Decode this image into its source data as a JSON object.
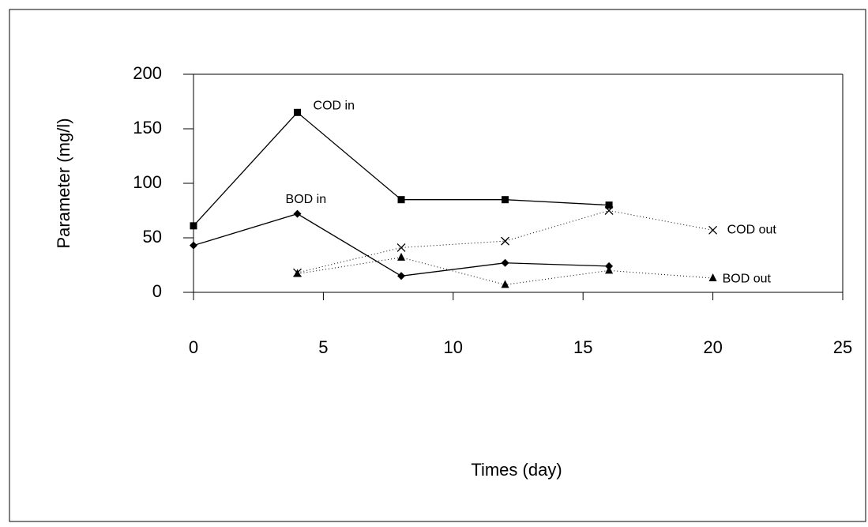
{
  "chart_data": {
    "type": "line",
    "x_label": "Times (day)",
    "y_label": "Parameter (mg/l)",
    "xlim": [
      0,
      25
    ],
    "xticks": [
      0,
      5,
      10,
      15,
      20,
      25
    ],
    "ylim": [
      0,
      200
    ],
    "yticks": [
      0,
      50,
      100,
      150,
      200
    ],
    "series": [
      {
        "name": "COD in",
        "color": "#000000",
        "line_style": "solid",
        "marker": "square",
        "x": [
          0,
          4,
          8,
          12,
          16
        ],
        "values": [
          61,
          165,
          85,
          85,
          80
        ]
      },
      {
        "name": "BOD in",
        "color": "#000000",
        "line_style": "solid",
        "marker": "diamond",
        "x": [
          0,
          4,
          8,
          12,
          16
        ],
        "values": [
          43,
          72,
          15,
          27,
          24
        ]
      },
      {
        "name": "COD out",
        "color": "#000000",
        "line_style": "dotted",
        "marker": "x",
        "x": [
          4,
          8,
          12,
          16,
          20
        ],
        "values": [
          18,
          41,
          47,
          75,
          57
        ]
      },
      {
        "name": "BOD out",
        "color": "#000000",
        "line_style": "dotted",
        "marker": "triangle",
        "x": [
          4,
          8,
          12,
          16,
          20
        ],
        "values": [
          17,
          32,
          7,
          20,
          13
        ]
      }
    ]
  }
}
